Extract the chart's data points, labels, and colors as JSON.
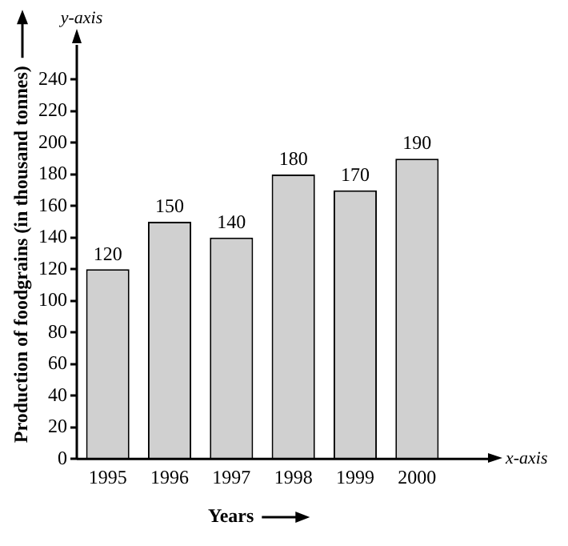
{
  "chart_data": {
    "type": "bar",
    "xlabel": "Years",
    "ylabel": "Production of foodgrains (in thousand tonnes)",
    "categories": [
      "1995",
      "1996",
      "1997",
      "1998",
      "1999",
      "2000"
    ],
    "values": [
      120,
      150,
      140,
      180,
      170,
      190
    ],
    "color": "#d0d0d0",
    "ylim": [
      0,
      260
    ],
    "yticks": [
      0,
      20,
      40,
      60,
      80,
      100,
      120,
      140,
      160,
      180,
      200,
      220,
      240
    ],
    "grid": false,
    "data_labels": true,
    "annotations": [
      "y-axis",
      "x-axis"
    ]
  }
}
